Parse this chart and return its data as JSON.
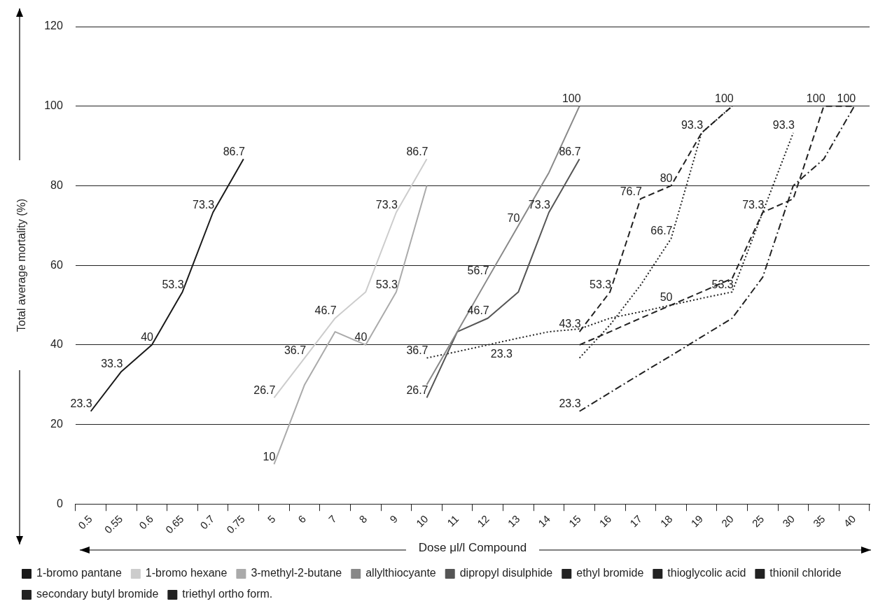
{
  "chart_data": {
    "type": "line",
    "xlabel": "Dose μl/l Compound",
    "ylabel": "Total average mortality (%)",
    "categories": [
      "0.5",
      "0.55",
      "0.6",
      "0.65",
      "0.7",
      "0.75",
      "5",
      "6",
      "7",
      "8",
      "9",
      "10",
      "11",
      "12",
      "13",
      "14",
      "15",
      "16",
      "17",
      "18",
      "19",
      "20",
      "25",
      "30",
      "35",
      "40"
    ],
    "ylim": [
      0,
      120
    ],
    "yticks": [
      0,
      20,
      40,
      60,
      80,
      100,
      120
    ],
    "grid": "y",
    "legend": "bottom",
    "marker": "none",
    "annotations": [
      {
        "text": "23.3",
        "x": "12",
        "y": 40
      }
    ],
    "series": [
      {
        "name": "1-bromo pantane",
        "color": "#1a1a1a",
        "line_style": "solid",
        "values": [
          23.3,
          33.3,
          40,
          53.3,
          73.3,
          86.7,
          null,
          null,
          null,
          null,
          null,
          null,
          null,
          null,
          null,
          null,
          null,
          null,
          null,
          null,
          null,
          null,
          null,
          null,
          null,
          null
        ],
        "value_labels": [
          "23.3",
          "33.3",
          "40",
          "53.3",
          "73.3",
          "86.7",
          null,
          null,
          null,
          null,
          null,
          null,
          null,
          null,
          null,
          null,
          null,
          null,
          null,
          null,
          null,
          null,
          null,
          null,
          null,
          null
        ]
      },
      {
        "name": "1-bromo hexane",
        "color": "#cccccc",
        "line_style": "solid",
        "values": [
          null,
          null,
          null,
          null,
          null,
          null,
          26.7,
          36.7,
          46.7,
          53.3,
          73.3,
          86.7,
          null,
          null,
          null,
          null,
          null,
          null,
          null,
          null,
          null,
          null,
          null,
          null,
          null,
          null
        ],
        "value_labels": [
          null,
          null,
          null,
          null,
          null,
          null,
          "26.7",
          "36.7",
          "46.7",
          null,
          "73.3",
          "86.7",
          null,
          null,
          null,
          null,
          null,
          null,
          null,
          null,
          null,
          null,
          null,
          null,
          null,
          null
        ]
      },
      {
        "name": "3-methyl-2-butane",
        "color": "#aaaaaa",
        "line_style": "solid",
        "values": [
          null,
          null,
          null,
          null,
          null,
          null,
          10,
          30,
          43.3,
          40,
          53.3,
          80,
          null,
          null,
          null,
          null,
          null,
          null,
          null,
          null,
          null,
          null,
          null,
          null,
          null,
          null
        ],
        "value_labels": [
          null,
          null,
          null,
          null,
          null,
          null,
          "10",
          null,
          null,
          "40",
          "53.3",
          null,
          null,
          null,
          null,
          null,
          null,
          null,
          null,
          null,
          null,
          null,
          null,
          null,
          null,
          null
        ]
      },
      {
        "name": "allylthiocyante",
        "color": "#888888",
        "line_style": "solid",
        "values": [
          null,
          null,
          null,
          null,
          null,
          null,
          null,
          null,
          null,
          null,
          null,
          30,
          43.3,
          56.7,
          70,
          83.3,
          100,
          null,
          null,
          null,
          null,
          null,
          null,
          null,
          null,
          null
        ],
        "value_labels": [
          null,
          null,
          null,
          null,
          null,
          null,
          null,
          null,
          null,
          null,
          null,
          null,
          null,
          "56.7",
          "70",
          null,
          "100",
          null,
          null,
          null,
          null,
          null,
          null,
          null,
          null,
          null
        ]
      },
      {
        "name": "dipropyl disulphide",
        "color": "#555555",
        "line_style": "solid",
        "values": [
          null,
          null,
          null,
          null,
          null,
          null,
          null,
          null,
          null,
          null,
          null,
          26.7,
          43.3,
          46.7,
          53.3,
          73.3,
          86.7,
          null,
          null,
          null,
          null,
          null,
          null,
          null,
          null,
          null
        ],
        "value_labels": [
          null,
          null,
          null,
          null,
          null,
          null,
          null,
          null,
          null,
          null,
          null,
          "26.7",
          null,
          "46.7",
          null,
          "73.3",
          "86.7",
          null,
          null,
          null,
          null,
          null,
          null,
          null,
          null,
          null
        ]
      },
      {
        "name": "ethyl bromide",
        "color": "#222222",
        "line_style": "dotted",
        "values": [
          null,
          null,
          null,
          null,
          null,
          null,
          null,
          null,
          null,
          null,
          null,
          36.7,
          38.3,
          40,
          41.7,
          43.3,
          44,
          46.7,
          48.3,
          50,
          51.7,
          53.3,
          73.3,
          93.3,
          null,
          null
        ],
        "value_labels": [
          null,
          null,
          null,
          null,
          null,
          null,
          null,
          null,
          null,
          null,
          null,
          "36.7",
          null,
          null,
          null,
          null,
          null,
          null,
          null,
          "50",
          null,
          "53.3",
          null,
          "93.3",
          null,
          null
        ]
      },
      {
        "name": "thioglycolic acid",
        "color": "#222222",
        "line_style": "dashed",
        "values": [
          null,
          null,
          null,
          null,
          null,
          null,
          null,
          null,
          null,
          null,
          null,
          null,
          null,
          null,
          null,
          null,
          43.3,
          53.3,
          76.7,
          80,
          93.3,
          100,
          null,
          null,
          null,
          null
        ],
        "value_labels": [
          null,
          null,
          null,
          null,
          null,
          null,
          null,
          null,
          null,
          null,
          null,
          null,
          null,
          null,
          null,
          null,
          "43.3",
          "53.3",
          "76.7",
          "80",
          "93.3",
          "100",
          null,
          null,
          null,
          null
        ]
      },
      {
        "name": "thionil chloride",
        "color": "#222222",
        "line_style": "dotted",
        "values": [
          null,
          null,
          null,
          null,
          null,
          null,
          null,
          null,
          null,
          null,
          null,
          null,
          null,
          null,
          null,
          null,
          36.7,
          45,
          55,
          66.7,
          93.3,
          100,
          null,
          null,
          null,
          null
        ],
        "value_labels": [
          null,
          null,
          null,
          null,
          null,
          null,
          null,
          null,
          null,
          null,
          null,
          null,
          null,
          null,
          null,
          null,
          null,
          null,
          null,
          "66.7",
          null,
          null,
          null,
          null,
          null,
          null
        ]
      },
      {
        "name": "secondary butyl bromide",
        "color": "#222222",
        "line_style": "dashed",
        "values": [
          null,
          null,
          null,
          null,
          null,
          null,
          null,
          null,
          null,
          null,
          null,
          null,
          null,
          null,
          null,
          null,
          40,
          43.3,
          46.7,
          50,
          53.3,
          56.7,
          73.3,
          76.7,
          100,
          100
        ],
        "value_labels": [
          null,
          null,
          null,
          null,
          null,
          null,
          null,
          null,
          null,
          null,
          null,
          null,
          null,
          null,
          null,
          null,
          null,
          null,
          null,
          null,
          null,
          null,
          "73.3",
          null,
          "100",
          null
        ]
      },
      {
        "name": "triethyl ortho form.",
        "color": "#222222",
        "line_style": "dashdot",
        "values": [
          null,
          null,
          null,
          null,
          null,
          null,
          null,
          null,
          null,
          null,
          null,
          null,
          null,
          null,
          null,
          null,
          23.3,
          28,
          32.7,
          37.3,
          42,
          46.7,
          57,
          80,
          86.7,
          100
        ],
        "value_labels": [
          null,
          null,
          null,
          null,
          null,
          null,
          null,
          null,
          null,
          null,
          null,
          null,
          null,
          null,
          null,
          null,
          "23.3",
          null,
          null,
          null,
          null,
          null,
          null,
          null,
          null,
          "100"
        ]
      }
    ]
  }
}
